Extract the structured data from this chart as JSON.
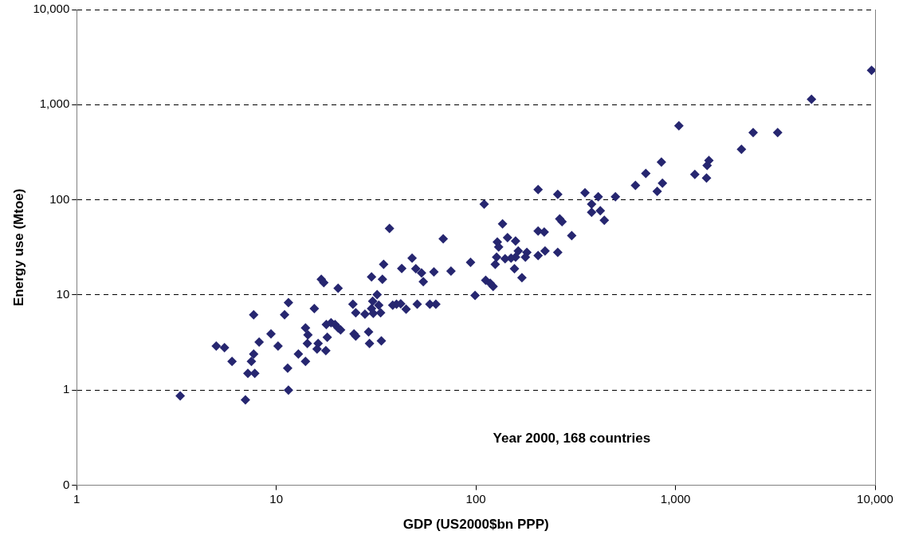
{
  "chart_data": {
    "type": "scatter",
    "xlabel": "GDP (US2000$bn PPP)",
    "ylabel": "Energy use (Mtoe)",
    "annotations": [
      "Year 2000, 168 countries"
    ],
    "log": "xy",
    "grid": "y",
    "legend": false,
    "marker": "diamond",
    "xlim": [
      1,
      10000
    ],
    "xticks": [
      1,
      10,
      100,
      {
        "value": 1000,
        "label": "1,000"
      },
      {
        "value": 10000,
        "label": "10,000"
      }
    ],
    "ylim": [
      0.1,
      10000
    ],
    "yticks": [
      {
        "value": 0.1,
        "label": "0"
      },
      1,
      10,
      100,
      {
        "value": 1000,
        "label": "1,000"
      },
      {
        "value": 10000,
        "label": "10,000"
      }
    ],
    "series": [
      {
        "color": "#262670",
        "x": [
          3.3,
          5.0,
          5.5,
          6.0,
          7.0,
          7.2,
          7.5,
          7.7,
          7.7,
          7.8,
          8.2,
          9.4,
          10.2,
          11,
          11.5,
          11.4,
          11.5,
          12.9,
          14,
          14,
          14.3,
          14.4,
          15.5,
          16,
          16.2,
          16.8,
          17.3,
          17.7,
          17.8,
          18,
          18.8,
          19.7,
          20.4,
          20.4,
          21,
          24.2,
          24.5,
          25,
          25,
          27.8,
          29,
          29.3,
          30,
          30,
          30.4,
          30.6,
          32,
          32.6,
          33.3,
          33.6,
          34,
          34.5,
          36.9,
          38.3,
          40,
          42,
          42.5,
          44.7,
          47.9,
          50,
          50.8,
          53.4,
          54.5,
          58.8,
          61.6,
          63,
          68.6,
          75,
          94,
          99,
          110,
          112,
          118,
          122,
          125,
          136,
          128,
          130,
          144,
          158,
          127,
          140,
          163,
          158,
          180,
          177,
          205,
          205,
          220,
          205,
          222,
          257,
          257,
          263,
          270,
          302,
          352,
          380,
          380,
          410,
          420,
          440,
          500,
          630,
          710,
          860,
          810,
          850,
          1040,
          1250,
          1430,
          1440,
          1470,
          2140,
          2450,
          3250,
          4800,
          9600,
          156,
          170,
          150
        ],
        "values": [
          0.87,
          2.9,
          2.8,
          2.0,
          0.79,
          1.5,
          2.0,
          2.4,
          6.2,
          1.5,
          3.2,
          3.9,
          2.9,
          6.2,
          8.3,
          1.7,
          1.0,
          2.4,
          2.0,
          4.5,
          3.1,
          3.8,
          7.2,
          2.7,
          3.1,
          14.6,
          13.5,
          2.6,
          4.9,
          3.6,
          5.1,
          4.9,
          11.8,
          4.5,
          4.3,
          8.0,
          3.9,
          3.7,
          6.5,
          6.3,
          4.1,
          3.1,
          15.5,
          7.2,
          8.6,
          6.4,
          10.1,
          7.8,
          6.5,
          3.3,
          14.6,
          21,
          50,
          7.8,
          8.0,
          8.1,
          19,
          7.1,
          24.4,
          18.9,
          8.0,
          17.1,
          13.8,
          8.0,
          17.5,
          8.0,
          39,
          17.8,
          22,
          9.9,
          90,
          14.3,
          13.3,
          12.3,
          21,
          56,
          36,
          32,
          40,
          37,
          25,
          24,
          29,
          25,
          28,
          25,
          128,
          47,
          46,
          26,
          29,
          28,
          114,
          63,
          59,
          42,
          119,
          90,
          74,
          108,
          77,
          61,
          108,
          142,
          190,
          150,
          123,
          250,
          600,
          185,
          170,
          230,
          260,
          340,
          510,
          510,
          1140,
          2300,
          18.9,
          15.2,
          24.4
        ]
      }
    ]
  }
}
